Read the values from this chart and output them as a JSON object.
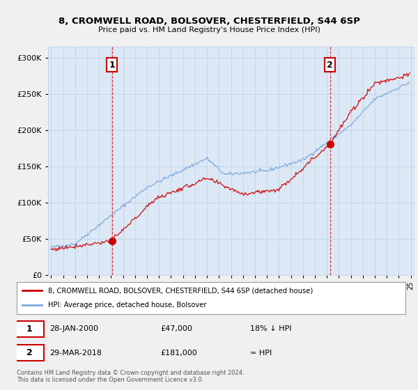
{
  "title": "8, CROMWELL ROAD, BOLSOVER, CHESTERFIELD, S44 6SP",
  "subtitle": "Price paid vs. HM Land Registry's House Price Index (HPI)",
  "ylabel_ticks": [
    0,
    50000,
    100000,
    150000,
    200000,
    250000,
    300000
  ],
  "ylabel_labels": [
    "£0",
    "£50K",
    "£100K",
    "£150K",
    "£200K",
    "£250K",
    "£300K"
  ],
  "xlim": [
    1994.75,
    2025.25
  ],
  "ylim": [
    0,
    315000
  ],
  "point1_x": 2000.07,
  "point1_y": 47000,
  "point2_x": 2018.25,
  "point2_y": 181000,
  "legend_line1": "8, CROMWELL ROAD, BOLSOVER, CHESTERFIELD, S44 6SP (detached house)",
  "legend_line2": "HPI: Average price, detached house, Bolsover",
  "table_row1": [
    "1",
    "28-JAN-2000",
    "£47,000",
    "18% ↓ HPI"
  ],
  "table_row2": [
    "2",
    "29-MAR-2018",
    "£181,000",
    "≈ HPI"
  ],
  "footer": "Contains HM Land Registry data © Crown copyright and database right 2024.\nThis data is licensed under the Open Government Licence v3.0.",
  "line_color_red": "#cc0000",
  "line_color_blue": "#7aaadd",
  "background_color": "#f0f0f0",
  "plot_bg_color": "#dce8f5",
  "grid_color": "#b8cfe8"
}
